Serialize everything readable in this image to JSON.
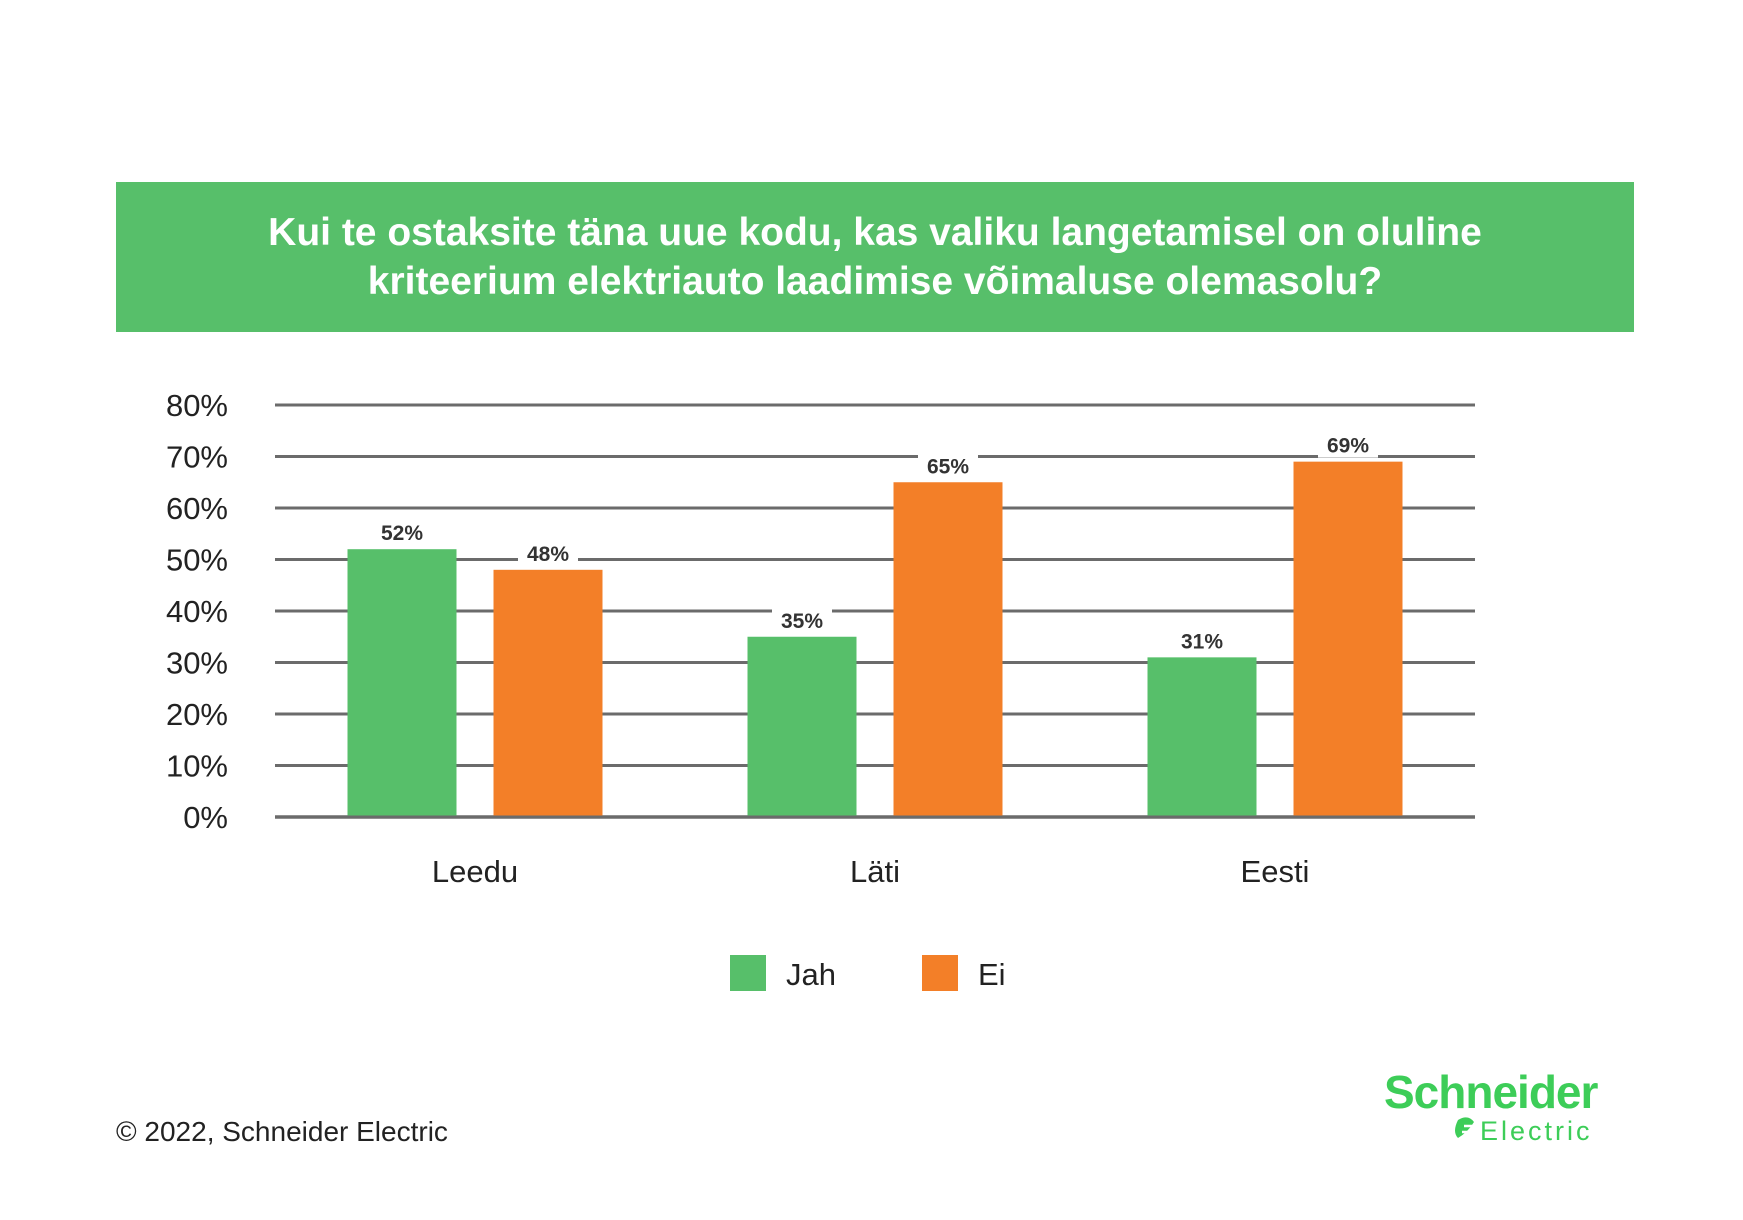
{
  "title": {
    "line1": "Kui te ostaksite täna uue kodu, kas valiku langetamisel on oluline",
    "line2": "kriteerium elektriauto laadimise võimaluse olemasolu?"
  },
  "colors": {
    "banner": "#57bf6a",
    "jah": "#57bf6a",
    "ei": "#f37f28",
    "grid": "#6b6b6b"
  },
  "chart_data": {
    "type": "bar",
    "title": "Kui te ostaksite täna uue kodu, kas valiku langetamisel on oluline kriteerium elektriauto laadimise võimaluse olemasolu?",
    "xlabel": "",
    "ylabel": "",
    "categories": [
      "Leedu",
      "Läti",
      "Eesti"
    ],
    "series": [
      {
        "name": "Jah",
        "values": [
          52,
          35,
          31
        ],
        "color": "#57bf6a"
      },
      {
        "name": "Ei",
        "values": [
          48,
          65,
          69
        ],
        "color": "#f37f28"
      }
    ],
    "value_labels": [
      [
        "52%",
        "35%",
        "31%"
      ],
      [
        "48%",
        "65%",
        "69%"
      ]
    ],
    "ylim": [
      0,
      80
    ],
    "yticks": [
      "0%",
      "10%",
      "20%",
      "30%",
      "40%",
      "50%",
      "60%",
      "70%",
      "80%"
    ],
    "grid": true,
    "legend": "bottom"
  },
  "footer": {
    "copyright": "© 2022, Schneider Electric"
  },
  "logo": {
    "line1": "Schneider",
    "line2": "Electric"
  }
}
